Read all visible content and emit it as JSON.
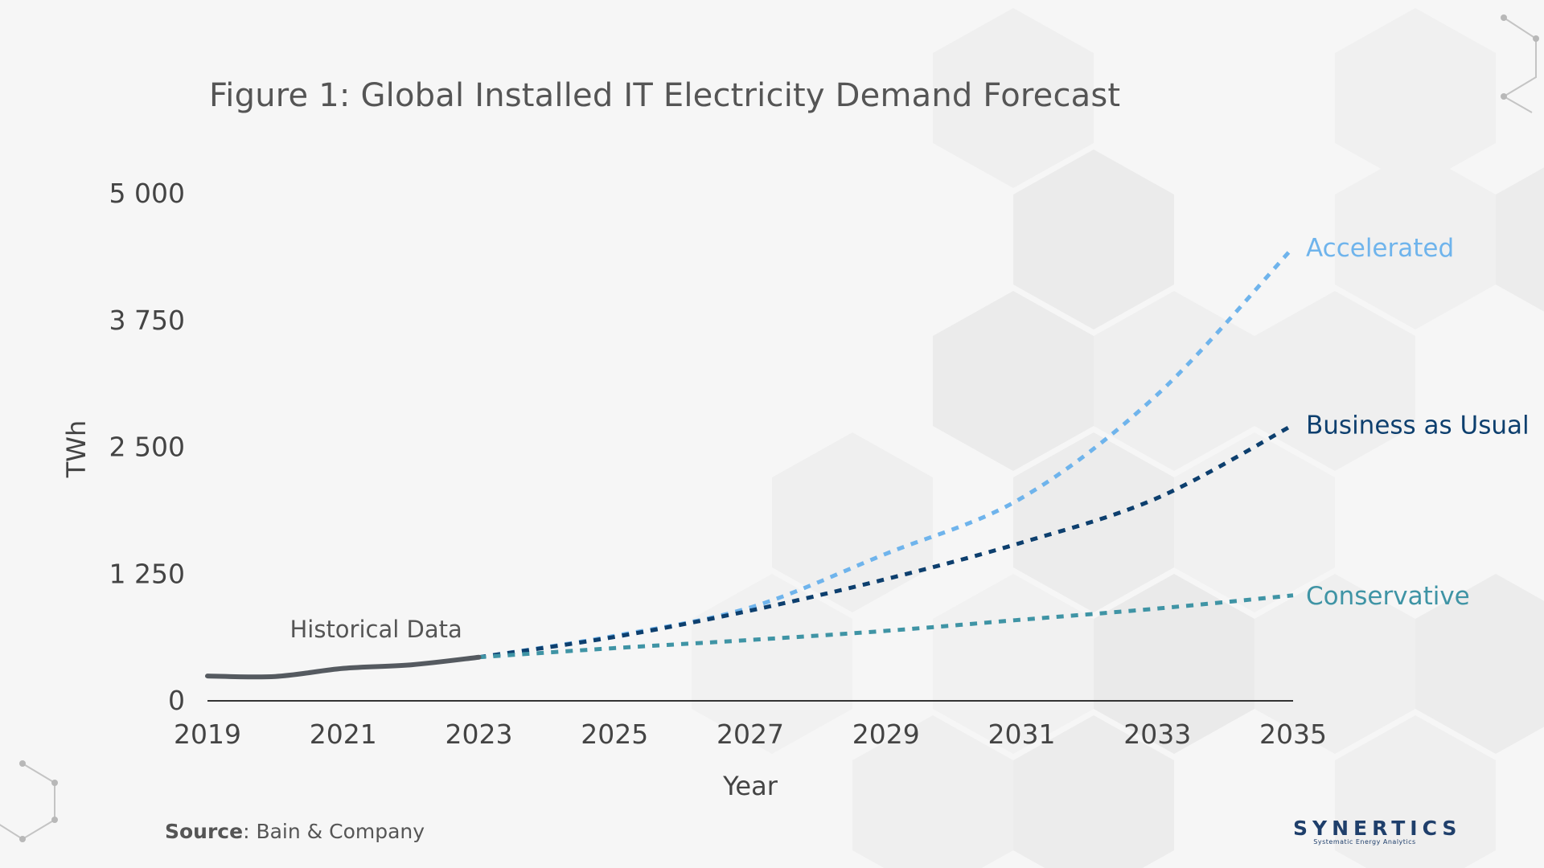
{
  "title": "Figure 1: Global Installed IT Electricity Demand Forecast",
  "source": {
    "label": "Source",
    "text": ": Bain & Company"
  },
  "logo": {
    "name": "SYNERTICS",
    "tagline": "Systematic Energy Analytics"
  },
  "colors": {
    "historical": "#555a60",
    "accelerated": "#6fb4ec",
    "business_as_usual": "#0d3f6e",
    "conservative": "#3f94a5",
    "axis": "#333333",
    "tick": "#444444"
  },
  "chart_data": {
    "type": "line",
    "title": "Figure 1: Global Installed IT Electricity Demand Forecast",
    "xlabel": "Year",
    "ylabel": "TWh",
    "xlim": [
      2019,
      2035
    ],
    "ylim": [
      0,
      5000
    ],
    "xticks": [
      2019,
      2021,
      2023,
      2025,
      2027,
      2029,
      2031,
      2033,
      2035
    ],
    "xtick_labels": [
      "2019",
      "2021",
      "2023",
      "2025",
      "2027",
      "2029",
      "2031",
      "2033",
      "2035"
    ],
    "yticks": [
      0,
      1250,
      2500,
      3750,
      5000
    ],
    "ytick_labels": [
      "0",
      "1 250",
      "2 500",
      "3 750",
      "5 000"
    ],
    "grid": false,
    "annotations": [
      {
        "text": "Historical Data",
        "x": 2021.2,
        "y": 640
      }
    ],
    "series": [
      {
        "name": "Historical Data",
        "style": "solid",
        "x": [
          2019,
          2020,
          2021,
          2022,
          2023
        ],
        "y": [
          245,
          240,
          320,
          355,
          430
        ]
      },
      {
        "name": "Accelerated",
        "style": "dashed",
        "x": [
          2023,
          2025,
          2027,
          2029,
          2031,
          2033,
          2035
        ],
        "y": [
          430,
          640,
          920,
          1450,
          2000,
          3020,
          4470
        ]
      },
      {
        "name": "Business as Usual",
        "style": "dashed",
        "x": [
          2023,
          2025,
          2027,
          2029,
          2031,
          2033,
          2035
        ],
        "y": [
          430,
          630,
          890,
          1200,
          1560,
          2000,
          2720
        ]
      },
      {
        "name": "Conservative",
        "style": "dashed",
        "x": [
          2023,
          2025,
          2027,
          2029,
          2031,
          2033,
          2035
        ],
        "y": [
          430,
          520,
          600,
          690,
          800,
          910,
          1040
        ]
      }
    ]
  }
}
